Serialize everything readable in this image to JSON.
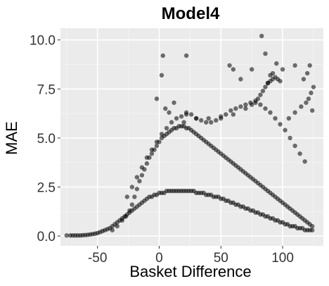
{
  "chart_data": {
    "type": "scatter",
    "title": "Model4",
    "xlabel": "Basket Difference",
    "ylabel": "MAE",
    "xlim": [
      -80,
      133
    ],
    "ylim": [
      -0.5,
      10.6
    ],
    "x_ticks": [
      -50,
      0,
      50,
      100
    ],
    "x_tick_labels": [
      "-50",
      "0",
      "50",
      "100"
    ],
    "y_ticks": [
      0,
      2.5,
      5,
      7.5,
      10
    ],
    "y_tick_labels": [
      "0.0",
      "2.5",
      "5.0",
      "7.5",
      "10.0"
    ],
    "grid": true,
    "legend": "none",
    "point_color": "#000000",
    "point_opacity": 0.55,
    "panel_background": "#ebebeb",
    "series": [
      {
        "x": [
          -75,
          -72,
          -70,
          -68,
          -66,
          -64,
          -62,
          -60,
          -58,
          -56,
          -54,
          -52,
          -50,
          -48,
          -46,
          -44,
          -42,
          -40,
          -38,
          -36,
          -34,
          -32,
          -30,
          -28,
          -26,
          -24,
          -22,
          -20,
          -18,
          -16,
          -14,
          -12,
          -10,
          -8,
          -6,
          -4,
          -2,
          0,
          2,
          4,
          6,
          8,
          10,
          12,
          14,
          16,
          18,
          20,
          22,
          24,
          26,
          28,
          30,
          32,
          34,
          36,
          38,
          40,
          42,
          44,
          46,
          48,
          50,
          52,
          54,
          56,
          58,
          60,
          62,
          64,
          66,
          68,
          70,
          72,
          74,
          76,
          78,
          80,
          82,
          84,
          86,
          88,
          90,
          92,
          94,
          96,
          98,
          100,
          102,
          104,
          106,
          108,
          110,
          112,
          114,
          116,
          118,
          120,
          122,
          124,
          -38,
          -34,
          -30,
          -27,
          -24,
          -22,
          -20,
          -18,
          -16,
          -14,
          -12,
          -10,
          -8,
          -6,
          -4,
          -2,
          0,
          2,
          4,
          6,
          8,
          10,
          12,
          14,
          16,
          18,
          20,
          22,
          24,
          26,
          28,
          30,
          32,
          34,
          36,
          38,
          40,
          42,
          44,
          46,
          48,
          50,
          52,
          54,
          56,
          58,
          60,
          62,
          64,
          66,
          68,
          70,
          72,
          74,
          76,
          78,
          80,
          82,
          84,
          86,
          88,
          90,
          92,
          94,
          96,
          98,
          100,
          102,
          104,
          106,
          108,
          110,
          112,
          114,
          116,
          118,
          120,
          122,
          124,
          -26,
          -22,
          -18,
          -14,
          -10,
          -6,
          -2,
          2,
          6,
          10,
          14,
          18,
          22,
          26,
          30,
          34,
          38,
          42,
          46,
          50,
          54,
          58,
          62,
          66,
          70,
          74,
          78,
          82,
          86,
          90,
          94,
          98,
          102,
          106,
          110,
          114,
          118,
          -2,
          2,
          5,
          8,
          12,
          20,
          22,
          30,
          40,
          50,
          60,
          70,
          75,
          78,
          80,
          82,
          84,
          86,
          88,
          90,
          92,
          94,
          96,
          98,
          105,
          110,
          115,
          119,
          121,
          123,
          125,
          3,
          22,
          57,
          60,
          66,
          75,
          83,
          86,
          88,
          90,
          92,
          95,
          100,
          110,
          117,
          120,
          122,
          124
        ],
        "y": [
          0.03,
          0.03,
          0.03,
          0.03,
          0.03,
          0.03,
          0.04,
          0.05,
          0.06,
          0.08,
          0.1,
          0.12,
          0.15,
          0.2,
          0.25,
          0.3,
          0.35,
          0.4,
          0.5,
          0.6,
          0.7,
          0.8,
          0.9,
          1.0,
          1.1,
          1.2,
          1.3,
          1.4,
          1.5,
          1.6,
          1.7,
          1.8,
          1.9,
          2.0,
          2.0,
          2.1,
          2.1,
          2.2,
          2.2,
          2.2,
          2.3,
          2.3,
          2.3,
          2.3,
          2.3,
          2.3,
          2.3,
          2.3,
          2.3,
          2.3,
          2.3,
          2.3,
          2.2,
          2.2,
          2.2,
          2.2,
          2.1,
          2.1,
          2.1,
          2.0,
          2.0,
          2.0,
          1.9,
          1.9,
          1.8,
          1.8,
          1.7,
          1.7,
          1.6,
          1.6,
          1.5,
          1.5,
          1.4,
          1.4,
          1.3,
          1.3,
          1.2,
          1.2,
          1.1,
          1.1,
          1.0,
          1.0,
          0.9,
          0.9,
          0.8,
          0.8,
          0.7,
          0.7,
          0.6,
          0.6,
          0.5,
          0.5,
          0.5,
          0.4,
          0.4,
          0.4,
          0.3,
          0.3,
          0.3,
          0.3,
          0.3,
          0.5,
          0.8,
          1.0,
          1.3,
          1.6,
          2.0,
          2.4,
          2.8,
          3.1,
          3.4,
          3.7,
          4.0,
          4.2,
          4.4,
          4.6,
          4.8,
          5.0,
          5.1,
          5.2,
          5.3,
          5.4,
          5.5,
          5.5,
          5.6,
          5.6,
          5.6,
          5.5,
          5.5,
          5.4,
          5.3,
          5.2,
          5.1,
          5.0,
          4.9,
          4.8,
          4.7,
          4.6,
          4.5,
          4.4,
          4.3,
          4.2,
          4.1,
          4.0,
          3.9,
          3.8,
          3.7,
          3.6,
          3.5,
          3.4,
          3.3,
          3.2,
          3.1,
          3.0,
          2.9,
          2.8,
          2.7,
          2.6,
          2.5,
          2.4,
          2.3,
          2.2,
          2.1,
          2.0,
          1.9,
          1.8,
          1.7,
          1.6,
          1.5,
          1.4,
          1.3,
          1.2,
          1.1,
          1.0,
          0.9,
          0.8,
          0.7,
          0.6,
          0.5,
          2.0,
          2.5,
          3.0,
          3.5,
          4.0,
          4.4,
          4.8,
          5.2,
          5.5,
          5.8,
          6.0,
          6.1,
          6.2,
          6.2,
          6.0,
          5.9,
          5.8,
          5.8,
          5.9,
          6.0,
          6.2,
          6.4,
          6.5,
          6.6,
          6.7,
          6.8,
          6.8,
          6.7,
          6.5,
          6.3,
          6.0,
          5.7,
          5.4,
          5.0,
          4.6,
          4.2,
          3.8,
          7.0,
          8.2,
          6.5,
          6.3,
          6.8,
          5.8,
          6.3,
          6.0,
          6.0,
          6.1,
          6.2,
          6.5,
          6.7,
          6.9,
          7.0,
          7.2,
          7.4,
          7.6,
          7.8,
          7.9,
          8.0,
          8.1,
          8.0,
          7.9,
          6.0,
          6.3,
          6.6,
          6.8,
          7.0,
          7.3,
          7.6,
          9.2,
          9.2,
          8.7,
          8.5,
          8.0,
          8.5,
          10.2,
          9.3,
          7.8,
          8.2,
          8.3,
          8.8,
          8.5,
          8.7,
          8.0,
          8.3,
          8.7,
          6.4
        ]
      }
    ]
  }
}
